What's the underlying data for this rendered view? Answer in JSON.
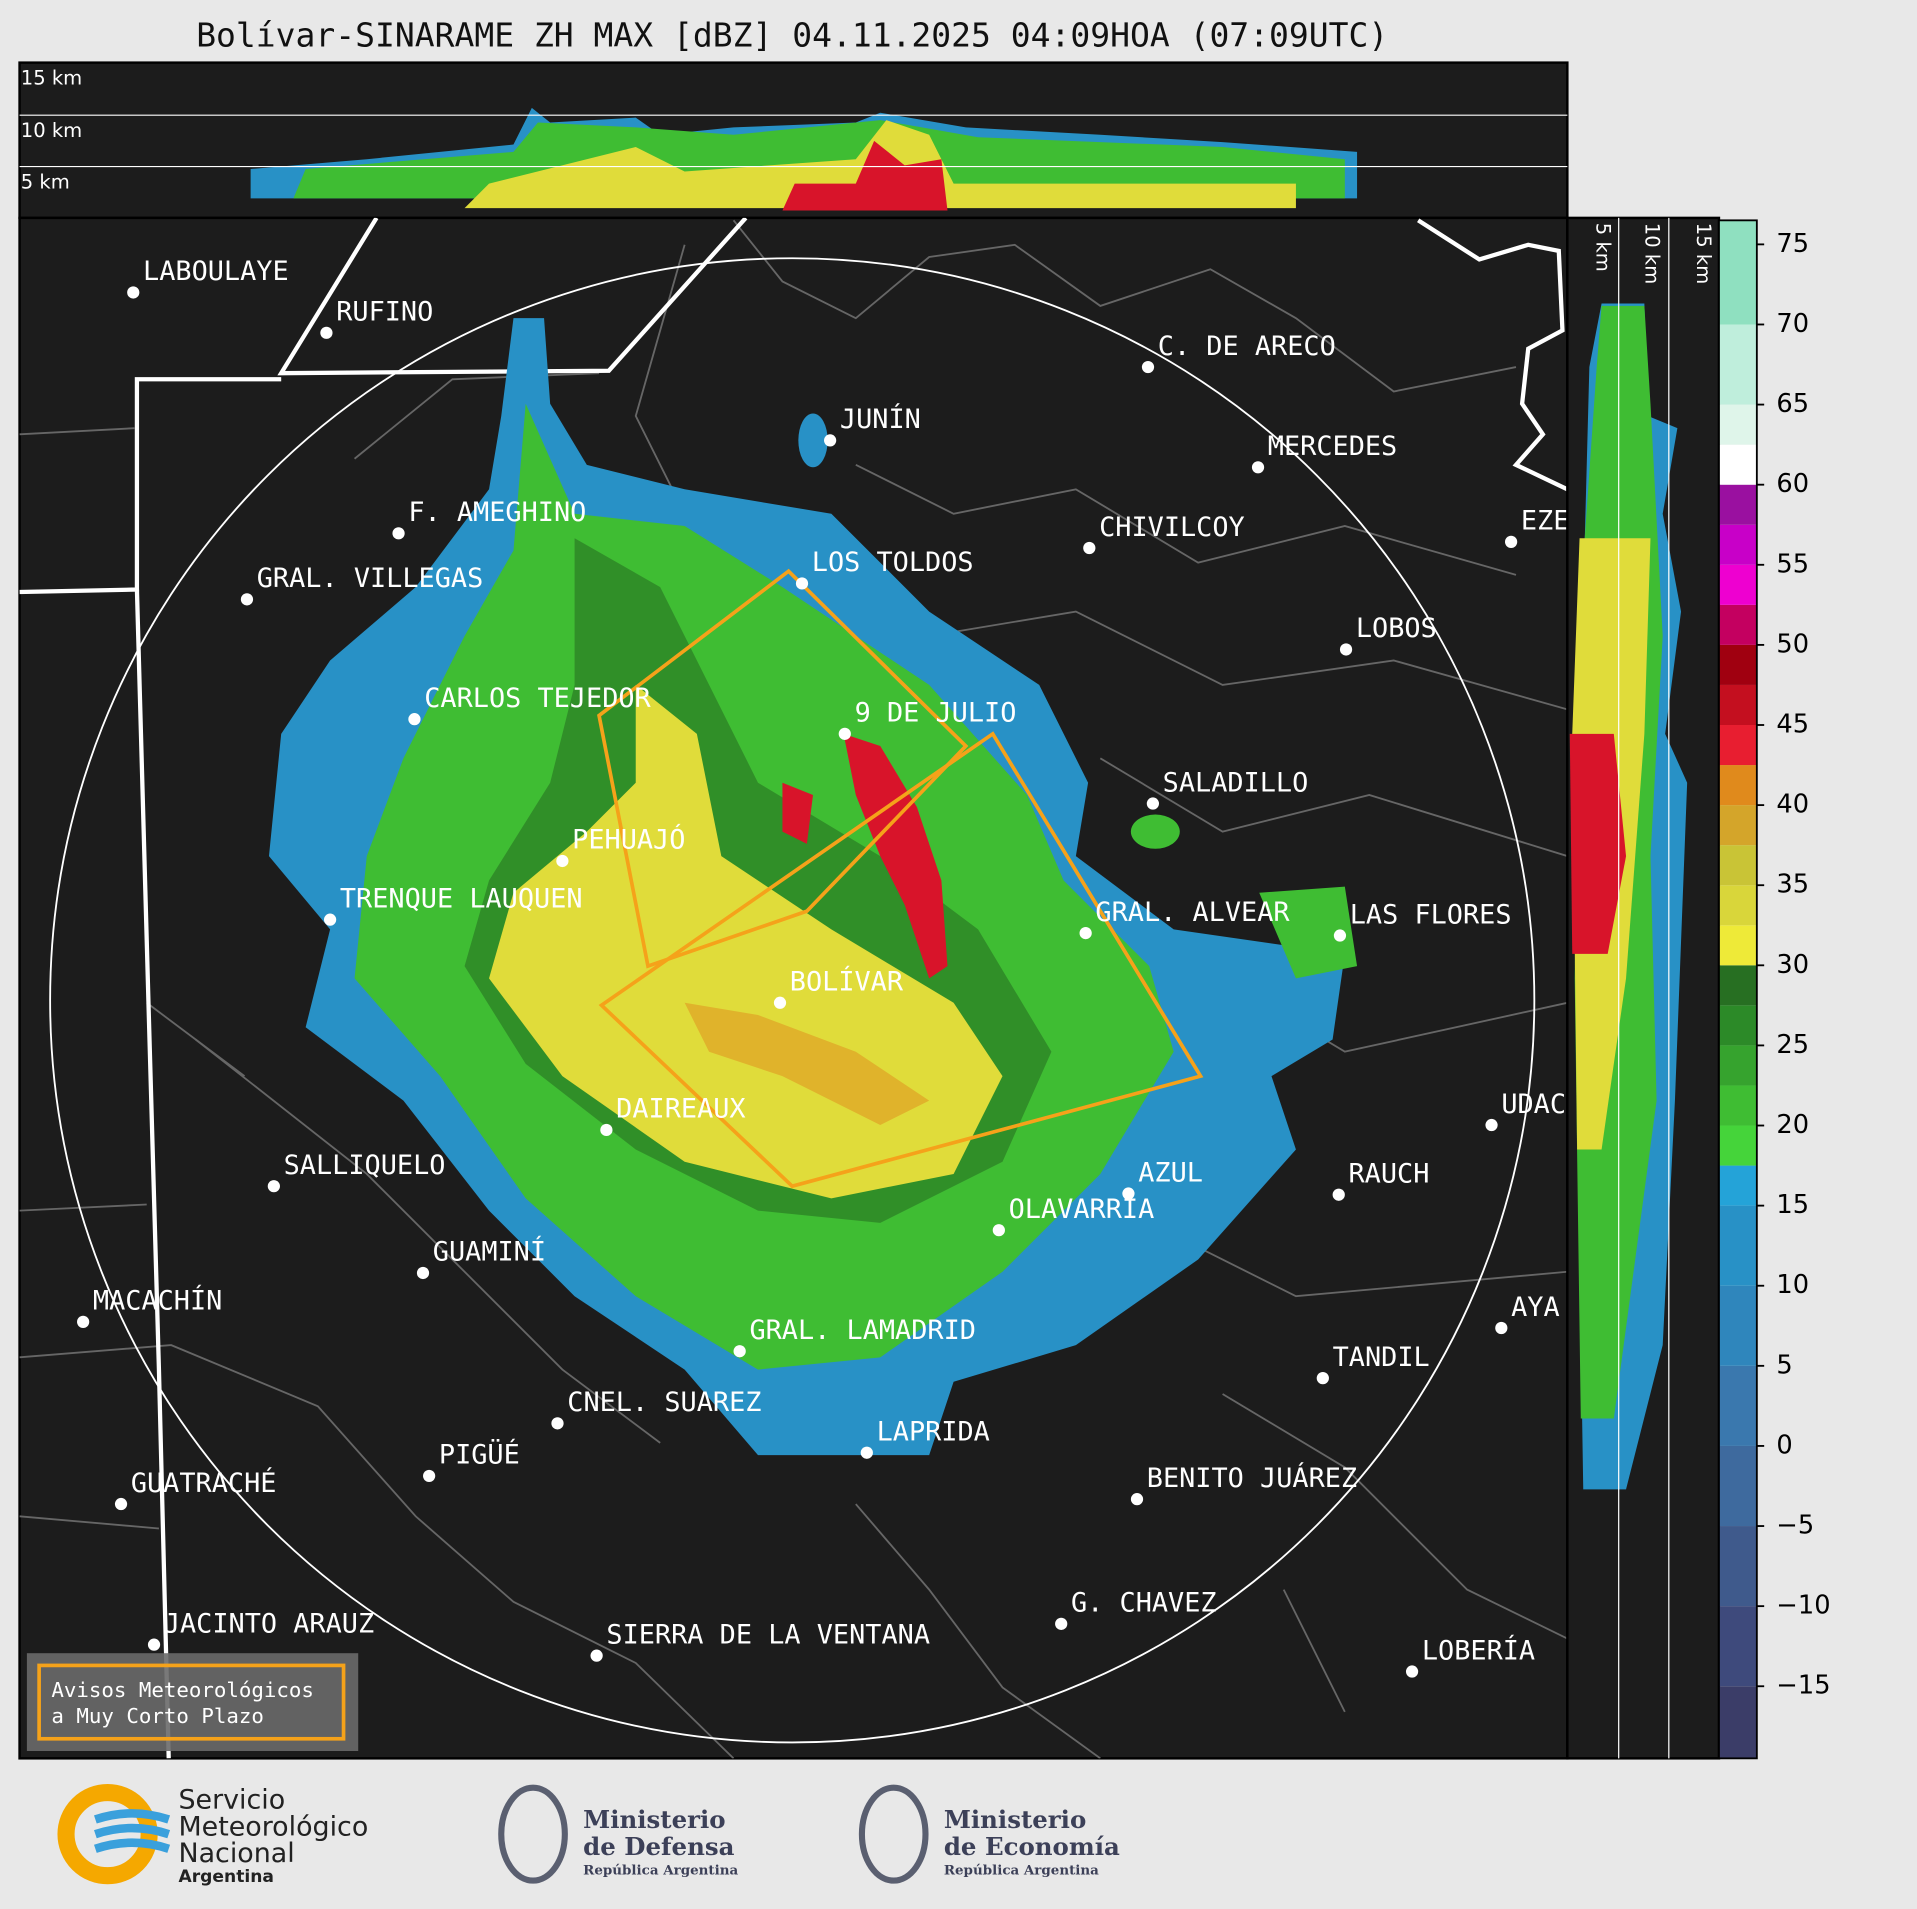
{
  "header": {
    "title": "Bolívar-SINARAME ZH MAX [dBZ] 04.11.2025 04:09HOA (07:09UTC)"
  },
  "profile": {
    "altitude_labels": [
      "15 km",
      "10 km",
      "5 km"
    ]
  },
  "side_profile": {
    "altitude_labels": [
      "5 km",
      "10 km",
      "15 km"
    ]
  },
  "colorbar": {
    "range": [
      -19.5,
      76.5
    ],
    "ticks": [
      {
        "value": -15,
        "label": "−15"
      },
      {
        "value": -10,
        "label": "−10"
      },
      {
        "value": -5,
        "label": "−5"
      },
      0,
      5,
      10,
      15,
      20,
      25,
      30,
      35,
      40,
      45,
      50,
      55,
      60,
      65,
      70,
      75
    ],
    "bands": [
      {
        "from": -19.5,
        "to": -15,
        "color": "#3b3d68"
      },
      {
        "from": -15,
        "to": -10,
        "color": "#3e4a7c"
      },
      {
        "from": -10,
        "to": -5,
        "color": "#3f5a8c"
      },
      {
        "from": -5,
        "to": 0,
        "color": "#3e6a9e"
      },
      {
        "from": 0,
        "to": 5,
        "color": "#3a78ae"
      },
      {
        "from": 5,
        "to": 10,
        "color": "#2f86bc"
      },
      {
        "from": 10,
        "to": 15,
        "color": "#2891c6"
      },
      {
        "from": 15,
        "to": 17.5,
        "color": "#24a3d8"
      },
      {
        "from": 17.5,
        "to": 20,
        "color": "#45d43a"
      },
      {
        "from": 20,
        "to": 22.5,
        "color": "#3fbd33"
      },
      {
        "from": 22.5,
        "to": 25,
        "color": "#36a32e"
      },
      {
        "from": 25,
        "to": 27.5,
        "color": "#2c8a28"
      },
      {
        "from": 27.5,
        "to": 30,
        "color": "#276f22"
      },
      {
        "from": 30,
        "to": 32.5,
        "color": "#eeea38"
      },
      {
        "from": 32.5,
        "to": 35,
        "color": "#d9d63a"
      },
      {
        "from": 35,
        "to": 37.5,
        "color": "#c9c436"
      },
      {
        "from": 37.5,
        "to": 40,
        "color": "#d4a52a"
      },
      {
        "from": 40,
        "to": 42.5,
        "color": "#e08a1c"
      },
      {
        "from": 42.5,
        "to": 45,
        "color": "#e81e30"
      },
      {
        "from": 45,
        "to": 47.5,
        "color": "#c40f1f"
      },
      {
        "from": 47.5,
        "to": 50,
        "color": "#a00010"
      },
      {
        "from": 50,
        "to": 52.5,
        "color": "#c40060"
      },
      {
        "from": 52.5,
        "to": 55,
        "color": "#ee00d0"
      },
      {
        "from": 55,
        "to": 57.5,
        "color": "#c800c8"
      },
      {
        "from": 57.5,
        "to": 60,
        "color": "#9a10a0"
      },
      {
        "from": 60,
        "to": 62.5,
        "color": "#ffffff"
      },
      {
        "from": 62.5,
        "to": 65,
        "color": "#dff5ea"
      },
      {
        "from": 65,
        "to": 70,
        "color": "#bfeedc"
      },
      {
        "from": 70,
        "to": 76.5,
        "color": "#8fe0c0"
      }
    ]
  },
  "map": {
    "cities": [
      "LABOULAYE",
      "RUFINO",
      "C. DE ARECO",
      "JUNÍN",
      "MERCEDES",
      "F. AMEGHINO",
      "CHIVILCOY",
      "EZE",
      "LOS TOLDOS",
      "GRAL. VILLEGAS",
      "LOBOS",
      "CARLOS TEJEDOR",
      "9 DE JULIO",
      "SALADILLO",
      "PEHUAJÓ",
      "TRENQUE LAUQUEN",
      "GRAL. ALVEAR",
      "LAS FLORES",
      "BOLÍVAR",
      "DAIREAUX",
      "UDAC",
      "SALLIQUELO",
      "AZUL",
      "RAUCH",
      "OLAVARRÍA",
      "GUAMINÍ",
      "MACACHÍN",
      "AYA",
      "TANDIL",
      "GRAL. LAMADRID",
      "CNEL. SUAREZ",
      "LAPRIDA",
      "PIGÜÉ",
      "GUATRACHÉ",
      "BENITO JUÁREZ",
      "G. CHAVEZ",
      "JACINTO ARAUZ",
      "SIERRA DE LA VENTANA",
      "LOBERÍA"
    ]
  },
  "legend": {
    "lines": [
      "Avisos Meteorológicos",
      "a Muy Corto Plazo"
    ]
  },
  "footer": {
    "smn": [
      "Servicio",
      "Meteorológico",
      "Nacional",
      "Argentina"
    ],
    "defensa": [
      "Ministerio",
      "de Defensa",
      "República Argentina"
    ],
    "economia": [
      "Ministerio",
      "de Economía",
      "República Argentina"
    ]
  }
}
